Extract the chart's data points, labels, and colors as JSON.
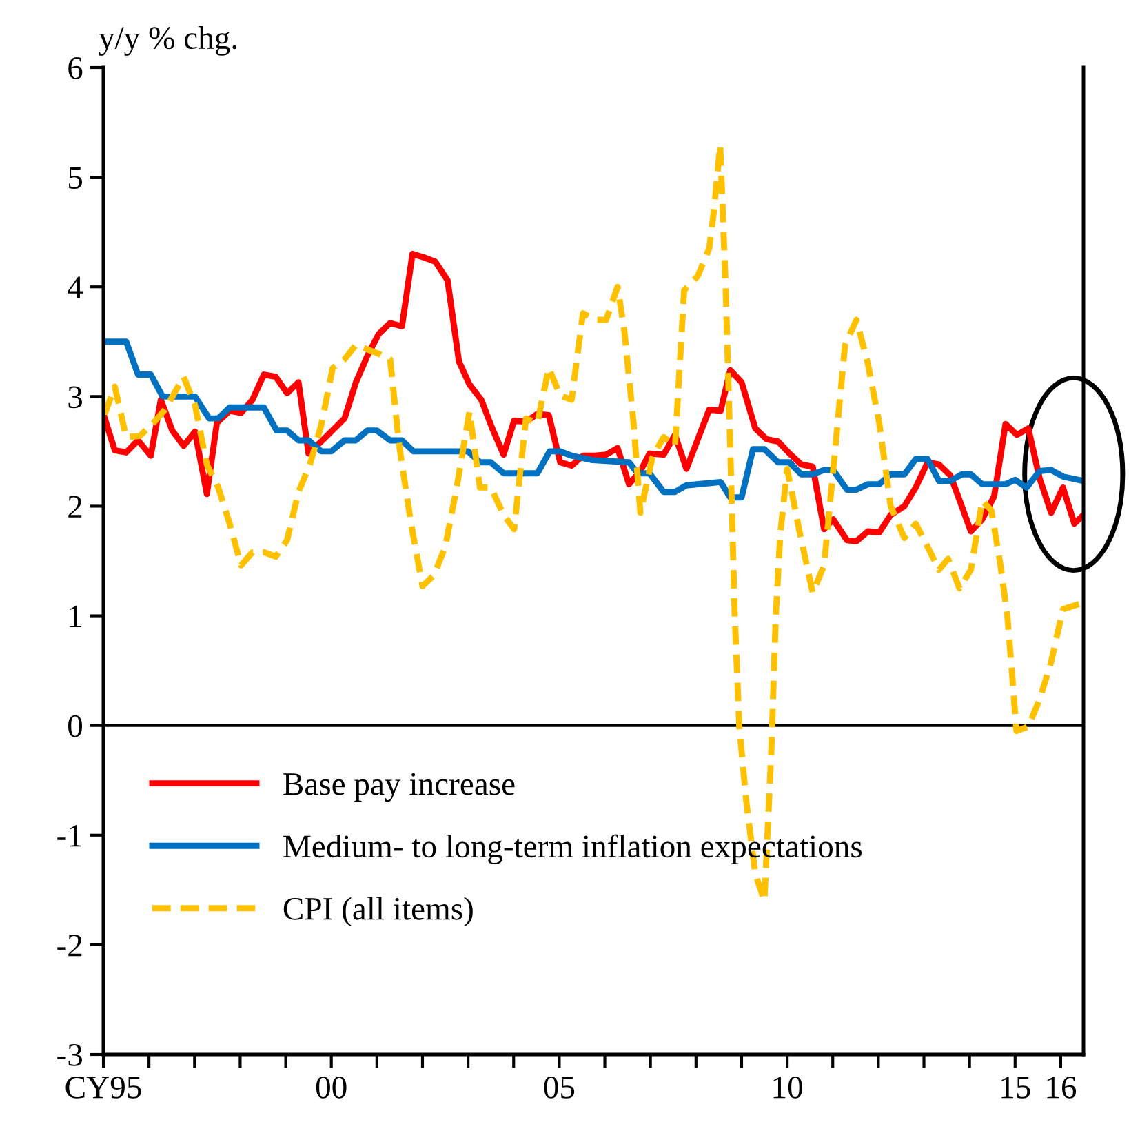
{
  "chart_data": {
    "type": "line",
    "ylabel": "y/y % chg.",
    "xlim": [
      1995,
      2016.5
    ],
    "xticks": [
      {
        "value": 1995,
        "label": "CY95"
      },
      {
        "value": 1996,
        "label": null
      },
      {
        "value": 1997,
        "label": null
      },
      {
        "value": 1998,
        "label": null
      },
      {
        "value": 1999,
        "label": null
      },
      {
        "value": 2000,
        "label": "00"
      },
      {
        "value": 2001,
        "label": null
      },
      {
        "value": 2002,
        "label": null
      },
      {
        "value": 2003,
        "label": null
      },
      {
        "value": 2004,
        "label": null
      },
      {
        "value": 2005,
        "label": "05"
      },
      {
        "value": 2006,
        "label": null
      },
      {
        "value": 2007,
        "label": null
      },
      {
        "value": 2008,
        "label": null
      },
      {
        "value": 2009,
        "label": null
      },
      {
        "value": 2010,
        "label": "10"
      },
      {
        "value": 2011,
        "label": null
      },
      {
        "value": 2012,
        "label": null
      },
      {
        "value": 2013,
        "label": null
      },
      {
        "value": 2014,
        "label": null
      },
      {
        "value": 2015,
        "label": "15"
      },
      {
        "value": 2016,
        "label": "16"
      }
    ],
    "ylim": [
      -3,
      6
    ],
    "yticks": [
      -3,
      -2,
      -1,
      0,
      1,
      2,
      3,
      4,
      5,
      6
    ],
    "grid": false,
    "legend": "bottom left",
    "marker": "none",
    "ref_lines": [
      {
        "axis": "y",
        "value": 0,
        "color": "#000000",
        "line_style": "solid"
      }
    ],
    "series": [
      {
        "name": "Base pay increase",
        "color": "#ff0000",
        "line_style": "solid",
        "x": [
          1995.03,
          1995.25,
          1995.5,
          1995.76,
          1996.04,
          1996.26,
          1996.51,
          1996.76,
          1997.01,
          1997.27,
          1997.49,
          1997.77,
          1998.02,
          1998.27,
          1998.52,
          1998.78,
          1999.03,
          1999.28,
          1999.5,
          1999.78,
          2000.29,
          2000.54,
          2000.79,
          2001.04,
          2001.29,
          2001.55,
          2001.78,
          2002.02,
          2002.28,
          2002.55,
          2002.8,
          2003.03,
          2003.29,
          2003.53,
          2003.78,
          2004.01,
          2004.27,
          2004.52,
          2004.77,
          2005.02,
          2005.27,
          2005.52,
          2005.78,
          2006.03,
          2006.28,
          2006.53,
          2006.78,
          2006.98,
          2007.29,
          2007.54,
          2007.79,
          2008.29,
          2008.54,
          2008.75,
          2009.0,
          2009.3,
          2009.55,
          2009.8,
          2010.05,
          2010.31,
          2010.56,
          2010.81,
          2011.01,
          2011.31,
          2011.52,
          2011.77,
          2012.02,
          2012.27,
          2012.57,
          2012.82,
          2013.08,
          2013.33,
          2013.58,
          2013.83,
          2014.03,
          2014.28,
          2014.54,
          2014.79,
          2015.04,
          2015.29,
          2015.54,
          2015.79,
          2016.05,
          2016.3,
          2016.5
        ],
        "values": [
          2.8,
          2.51,
          2.49,
          2.6,
          2.46,
          2.97,
          2.69,
          2.55,
          2.68,
          2.11,
          2.76,
          2.87,
          2.85,
          2.97,
          3.2,
          3.18,
          3.03,
          3.13,
          2.48,
          2.59,
          2.8,
          3.13,
          3.37,
          3.57,
          3.67,
          3.64,
          4.3,
          4.27,
          4.23,
          4.06,
          3.32,
          3.11,
          2.97,
          2.71,
          2.47,
          2.78,
          2.77,
          2.84,
          2.83,
          2.4,
          2.37,
          2.46,
          2.46,
          2.47,
          2.53,
          2.2,
          2.32,
          2.48,
          2.47,
          2.65,
          2.34,
          2.88,
          2.87,
          3.24,
          3.13,
          2.71,
          2.61,
          2.59,
          2.48,
          2.38,
          2.36,
          1.79,
          1.88,
          1.69,
          1.68,
          1.77,
          1.76,
          1.92,
          2.0,
          2.17,
          2.4,
          2.38,
          2.28,
          2.0,
          1.77,
          1.88,
          2.09,
          2.75,
          2.65,
          2.71,
          2.25,
          1.94,
          2.17,
          1.84,
          1.92
        ]
      },
      {
        "name": "Medium- to long-term inflation expectations",
        "color": "#0070c0",
        "line_style": "solid",
        "x": [
          1995.0,
          1995.5,
          1995.76,
          1996.04,
          1996.3,
          1997.01,
          1997.32,
          1997.52,
          1997.77,
          1998.52,
          1998.8,
          1999.03,
          1999.28,
          1999.5,
          1999.78,
          2000.0,
          2000.29,
          2000.54,
          2000.79,
          2001.0,
          2001.29,
          2001.55,
          2001.8,
          2003.0,
          2003.26,
          2003.5,
          2003.78,
          2004.52,
          2004.79,
          2005.02,
          2005.27,
          2005.73,
          2006.53,
          2006.72,
          2006.98,
          2007.29,
          2007.54,
          2007.79,
          2008.29,
          2008.54,
          2008.75,
          2009.0,
          2009.25,
          2009.5,
          2009.8,
          2010.05,
          2010.31,
          2010.56,
          2010.81,
          2011.01,
          2011.31,
          2011.52,
          2011.77,
          2012.02,
          2012.27,
          2012.57,
          2012.82,
          2013.08,
          2013.33,
          2013.58,
          2013.83,
          2014.03,
          2014.28,
          2014.79,
          2015.0,
          2015.25,
          2015.54,
          2015.79,
          2016.05,
          2016.5
        ],
        "values": [
          3.5,
          3.5,
          3.2,
          3.2,
          3.0,
          3.0,
          2.8,
          2.8,
          2.9,
          2.9,
          2.69,
          2.69,
          2.6,
          2.6,
          2.5,
          2.5,
          2.6,
          2.6,
          2.69,
          2.69,
          2.6,
          2.6,
          2.5,
          2.5,
          2.4,
          2.4,
          2.3,
          2.3,
          2.5,
          2.5,
          2.46,
          2.42,
          2.4,
          2.3,
          2.3,
          2.13,
          2.13,
          2.19,
          2.21,
          2.22,
          2.08,
          2.08,
          2.52,
          2.52,
          2.4,
          2.4,
          2.29,
          2.29,
          2.33,
          2.33,
          2.15,
          2.15,
          2.2,
          2.2,
          2.29,
          2.29,
          2.43,
          2.43,
          2.23,
          2.23,
          2.29,
          2.29,
          2.2,
          2.2,
          2.24,
          2.17,
          2.32,
          2.33,
          2.27,
          2.23
        ]
      },
      {
        "name": "CPI (all items)",
        "color": "#ffc000",
        "line_style": "dashed",
        "x": [
          1995.03,
          1995.25,
          1995.5,
          1995.8,
          1996.1,
          1996.35,
          1996.76,
          1997.01,
          1997.27,
          1997.52,
          1997.77,
          1998.02,
          1998.27,
          1998.52,
          1998.78,
          1999.03,
          1999.28,
          1999.53,
          1999.78,
          2000.03,
          2000.29,
          2000.54,
          2000.79,
          2001.04,
          2001.29,
          2001.49,
          2001.75,
          2002.0,
          2002.25,
          2002.5,
          2002.75,
          2003.03,
          2003.26,
          2003.5,
          2003.78,
          2004.01,
          2004.27,
          2004.52,
          2004.77,
          2005.02,
          2005.27,
          2005.52,
          2005.78,
          2006.03,
          2006.28,
          2006.43,
          2006.63,
          2006.78,
          2007.04,
          2007.29,
          2007.54,
          2007.74,
          2008.04,
          2008.29,
          2008.39,
          2008.53,
          2008.65,
          2008.75,
          2008.85,
          2008.95,
          2009.1,
          2009.3,
          2009.5,
          2009.65,
          2009.75,
          2009.85,
          2010.0,
          2010.26,
          2010.56,
          2010.81,
          2011.06,
          2011.27,
          2011.52,
          2011.77,
          2012.02,
          2012.27,
          2012.57,
          2012.82,
          2013.08,
          2013.33,
          2013.53,
          2013.78,
          2014.03,
          2014.28,
          2014.48,
          2014.68,
          2014.83,
          2014.93,
          2015.03,
          2015.29,
          2015.54,
          2015.79,
          2016.05,
          2016.5
        ],
        "values": [
          2.84,
          3.09,
          2.63,
          2.64,
          2.76,
          2.88,
          3.18,
          2.92,
          2.38,
          2.17,
          1.84,
          1.46,
          1.58,
          1.58,
          1.54,
          1.69,
          2.13,
          2.38,
          2.74,
          3.26,
          3.34,
          3.47,
          3.43,
          3.39,
          3.34,
          2.55,
          1.84,
          1.27,
          1.37,
          1.63,
          2.17,
          2.86,
          2.17,
          2.17,
          1.92,
          1.79,
          2.8,
          2.76,
          3.26,
          3.01,
          2.97,
          3.76,
          3.7,
          3.7,
          4.0,
          3.59,
          2.76,
          1.94,
          2.44,
          2.63,
          2.55,
          3.97,
          4.1,
          4.35,
          4.68,
          5.29,
          4.01,
          2.55,
          1.0,
          -0.01,
          -0.68,
          -1.35,
          -1.6,
          -0.26,
          1.0,
          1.75,
          2.34,
          1.79,
          1.21,
          1.46,
          2.55,
          3.47,
          3.7,
          3.3,
          2.76,
          2.0,
          1.71,
          1.84,
          1.63,
          1.42,
          1.52,
          1.25,
          1.42,
          2.05,
          1.96,
          1.46,
          1.0,
          0.49,
          -0.05,
          -0.01,
          0.24,
          0.58,
          1.06,
          1.12
        ]
      }
    ]
  }
}
